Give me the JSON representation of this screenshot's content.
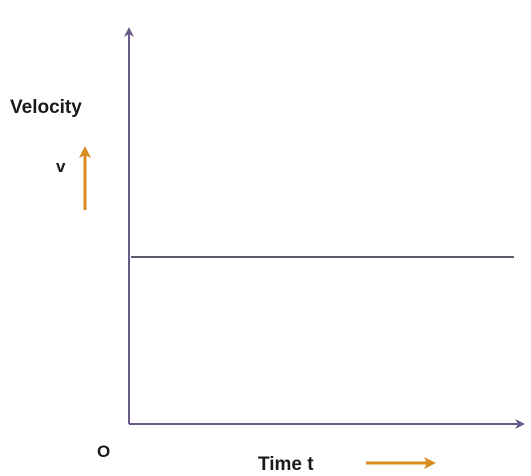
{
  "chart_data": {
    "type": "line",
    "ylabel": "Velocity",
    "ysymbol": "v",
    "xlabel": "Time t",
    "origin_label": "O",
    "series": [
      {
        "x": [
          0,
          1
        ],
        "values": [
          1,
          1
        ]
      }
    ],
    "xlim": [
      0,
      1
    ],
    "ylim": [
      0,
      2.3
    ],
    "grid": false,
    "colors": {
      "axis": "#6a5a8c",
      "line": "#5a5a6a",
      "arrow": "#d88a1e",
      "text": "#1a1a1a"
    }
  }
}
